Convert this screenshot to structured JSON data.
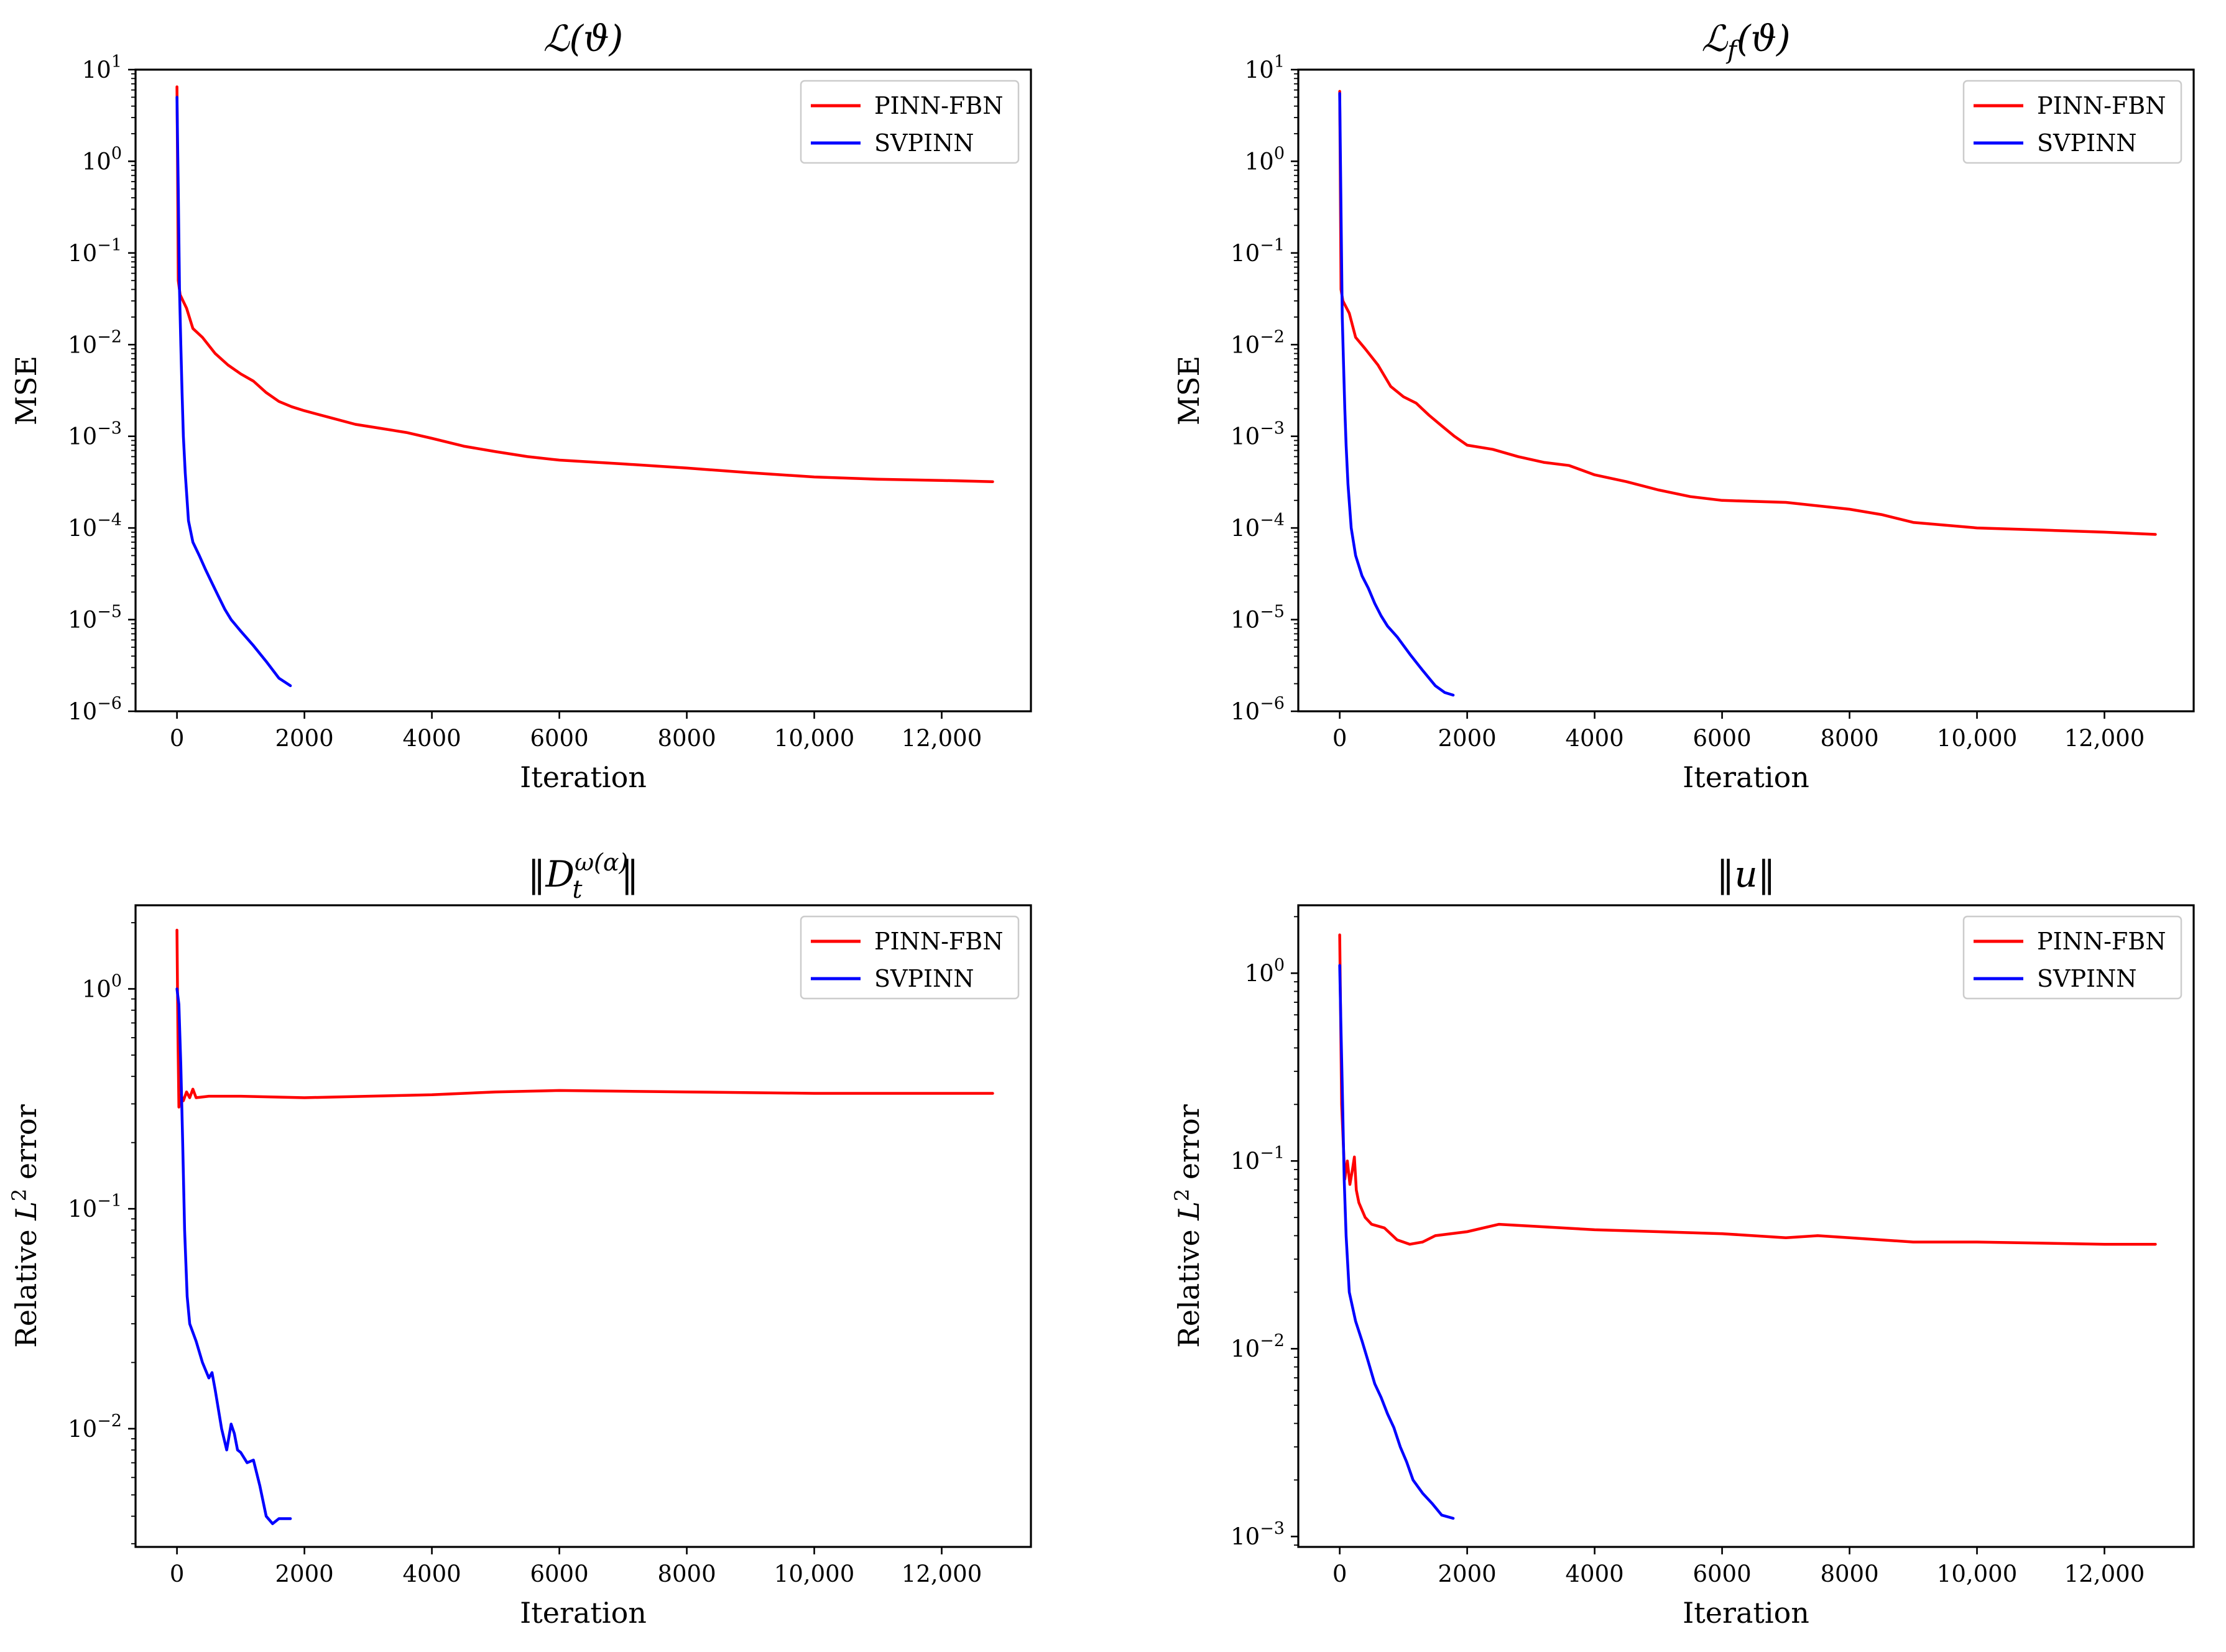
{
  "chart_data": [
    {
      "type": "line",
      "title": "ℒ(ϑ)",
      "xlabel": "Iteration",
      "ylabel": "MSE",
      "yscale": "log",
      "xlim": [
        -650,
        13400
      ],
      "ylim": [
        1e-06,
        10
      ],
      "xticks": [
        0,
        2000,
        4000,
        6000,
        8000,
        10000,
        12000
      ],
      "xtick_labels": [
        "0",
        "2000",
        "4000",
        "6000",
        "8000",
        "10,000",
        "12,000"
      ],
      "yticks": [
        1e-06,
        1e-05,
        0.0001,
        0.001,
        0.01,
        0.1,
        1,
        10
      ],
      "ytick_labels": [
        "10⁻⁶",
        "10⁻⁵",
        "10⁻⁴",
        "10⁻³",
        "10⁻²",
        "10⁻¹",
        "10⁰",
        "10¹"
      ],
      "legend": "top-right",
      "series": [
        {
          "name": "PINN-FBN",
          "color": "#ff0000",
          "points": [
            [
              0,
              6.5
            ],
            [
              10,
              0.8
            ],
            [
              20,
              0.05
            ],
            [
              50,
              0.035
            ],
            [
              150,
              0.025
            ],
            [
              250,
              0.015
            ],
            [
              400,
              0.012
            ],
            [
              600,
              0.008
            ],
            [
              800,
              0.006
            ],
            [
              1000,
              0.0048
            ],
            [
              1200,
              0.004
            ],
            [
              1400,
              0.003
            ],
            [
              1600,
              0.0024
            ],
            [
              1800,
              0.0021
            ],
            [
              2000,
              0.0019
            ],
            [
              2400,
              0.0016
            ],
            [
              2800,
              0.00135
            ],
            [
              3200,
              0.00122
            ],
            [
              3600,
              0.0011
            ],
            [
              4000,
              0.00095
            ],
            [
              4500,
              0.00078
            ],
            [
              5000,
              0.00068
            ],
            [
              5500,
              0.0006
            ],
            [
              6000,
              0.00055
            ],
            [
              7000,
              0.0005
            ],
            [
              8000,
              0.00045
            ],
            [
              9000,
              0.0004
            ],
            [
              10000,
              0.00036
            ],
            [
              11000,
              0.00034
            ],
            [
              12000,
              0.00033
            ],
            [
              12800,
              0.00032
            ]
          ]
        },
        {
          "name": "SVPINN",
          "color": "#0000ff",
          "points": [
            [
              0,
              5.0
            ],
            [
              20,
              0.5
            ],
            [
              40,
              0.04
            ],
            [
              60,
              0.01
            ],
            [
              80,
              0.003
            ],
            [
              100,
              0.001
            ],
            [
              130,
              0.0004
            ],
            [
              180,
              0.00012
            ],
            [
              250,
              7e-05
            ],
            [
              350,
              5e-05
            ],
            [
              450,
              3.5e-05
            ],
            [
              550,
              2.5e-05
            ],
            [
              650,
              1.8e-05
            ],
            [
              750,
              1.3e-05
            ],
            [
              850,
              1e-05
            ],
            [
              1000,
              7.5e-06
            ],
            [
              1200,
              5.2e-06
            ],
            [
              1400,
              3.5e-06
            ],
            [
              1600,
              2.3e-06
            ],
            [
              1780,
              1.9e-06
            ]
          ]
        }
      ]
    },
    {
      "type": "line",
      "title": "ℒf(ϑ)",
      "xlabel": "Iteration",
      "ylabel": "MSE",
      "yscale": "log",
      "xlim": [
        -650,
        13400
      ],
      "ylim": [
        1e-06,
        10
      ],
      "xticks": [
        0,
        2000,
        4000,
        6000,
        8000,
        10000,
        12000
      ],
      "xtick_labels": [
        "0",
        "2000",
        "4000",
        "6000",
        "8000",
        "10,000",
        "12,000"
      ],
      "yticks": [
        1e-06,
        1e-05,
        0.0001,
        0.001,
        0.01,
        0.1,
        1,
        10
      ],
      "ytick_labels": [
        "10⁻⁶",
        "10⁻⁵",
        "10⁻⁴",
        "10⁻³",
        "10⁻²",
        "10⁻¹",
        "10⁰",
        "10¹"
      ],
      "legend": "top-right",
      "series": [
        {
          "name": "PINN-FBN",
          "color": "#ff0000",
          "points": [
            [
              0,
              5.8
            ],
            [
              10,
              0.6
            ],
            [
              20,
              0.04
            ],
            [
              50,
              0.03
            ],
            [
              150,
              0.022
            ],
            [
              250,
              0.012
            ],
            [
              400,
              0.009
            ],
            [
              600,
              0.006
            ],
            [
              800,
              0.0035
            ],
            [
              1000,
              0.0027
            ],
            [
              1200,
              0.0023
            ],
            [
              1400,
              0.0017
            ],
            [
              1600,
              0.0013
            ],
            [
              1800,
              0.001
            ],
            [
              2000,
              0.0008
            ],
            [
              2400,
              0.00072
            ],
            [
              2800,
              0.0006
            ],
            [
              3200,
              0.00052
            ],
            [
              3600,
              0.00048
            ],
            [
              4000,
              0.00038
            ],
            [
              4500,
              0.00032
            ],
            [
              5000,
              0.00026
            ],
            [
              5500,
              0.00022
            ],
            [
              6000,
              0.0002
            ],
            [
              7000,
              0.00019
            ],
            [
              8000,
              0.00016
            ],
            [
              8500,
              0.00014
            ],
            [
              9000,
              0.000115
            ],
            [
              10000,
              0.0001
            ],
            [
              11000,
              9.5e-05
            ],
            [
              12000,
              9e-05
            ],
            [
              12800,
              8.5e-05
            ]
          ]
        },
        {
          "name": "SVPINN",
          "color": "#0000ff",
          "points": [
            [
              0,
              5.5
            ],
            [
              20,
              0.3
            ],
            [
              40,
              0.02
            ],
            [
              60,
              0.006
            ],
            [
              80,
              0.002
            ],
            [
              100,
              0.0008
            ],
            [
              130,
              0.0003
            ],
            [
              180,
              0.0001
            ],
            [
              250,
              5e-05
            ],
            [
              350,
              3e-05
            ],
            [
              450,
              2.2e-05
            ],
            [
              550,
              1.5e-05
            ],
            [
              650,
              1.1e-05
            ],
            [
              750,
              8.5e-06
            ],
            [
              900,
              6.5e-06
            ],
            [
              1100,
              4.2e-06
            ],
            [
              1300,
              2.8e-06
            ],
            [
              1500,
              1.9e-06
            ],
            [
              1650,
              1.6e-06
            ],
            [
              1780,
              1.5e-06
            ]
          ]
        }
      ]
    },
    {
      "type": "line",
      "title": "‖Dₜ^ω(α)‖",
      "xlabel": "Iteration",
      "ylabel": "Relative L² error",
      "yscale": "log",
      "xlim": [
        -650,
        13400
      ],
      "ylim": [
        0.0029,
        2.4
      ],
      "xticks": [
        0,
        2000,
        4000,
        6000,
        8000,
        10000,
        12000
      ],
      "xtick_labels": [
        "0",
        "2000",
        "4000",
        "6000",
        "8000",
        "10,000",
        "12,000"
      ],
      "yticks": [
        0.01,
        0.1,
        1
      ],
      "ytick_labels": [
        "10⁻²",
        "10⁻¹",
        "10⁰"
      ],
      "legend": "top-right",
      "series": [
        {
          "name": "PINN-FBN",
          "color": "#ff0000",
          "points": [
            [
              0,
              1.85
            ],
            [
              15,
              0.6
            ],
            [
              30,
              0.29
            ],
            [
              60,
              0.33
            ],
            [
              100,
              0.31
            ],
            [
              150,
              0.34
            ],
            [
              200,
              0.32
            ],
            [
              250,
              0.35
            ],
            [
              300,
              0.32
            ],
            [
              500,
              0.325
            ],
            [
              1000,
              0.325
            ],
            [
              2000,
              0.32
            ],
            [
              3000,
              0.325
            ],
            [
              4000,
              0.33
            ],
            [
              5000,
              0.34
            ],
            [
              6000,
              0.345
            ],
            [
              8000,
              0.34
            ],
            [
              10000,
              0.335
            ],
            [
              12000,
              0.335
            ],
            [
              12800,
              0.335
            ]
          ]
        },
        {
          "name": "SVPINN",
          "color": "#0000ff",
          "points": [
            [
              0,
              1.0
            ],
            [
              30,
              0.85
            ],
            [
              60,
              0.45
            ],
            [
              90,
              0.2
            ],
            [
              120,
              0.08
            ],
            [
              160,
              0.04
            ],
            [
              200,
              0.03
            ],
            [
              300,
              0.025
            ],
            [
              400,
              0.02
            ],
            [
              500,
              0.017
            ],
            [
              550,
              0.018
            ],
            [
              600,
              0.015
            ],
            [
              700,
              0.01
            ],
            [
              780,
              0.008
            ],
            [
              850,
              0.0105
            ],
            [
              900,
              0.0095
            ],
            [
              950,
              0.008
            ],
            [
              1000,
              0.0078
            ],
            [
              1100,
              0.007
            ],
            [
              1200,
              0.0072
            ],
            [
              1300,
              0.0055
            ],
            [
              1400,
              0.004
            ],
            [
              1500,
              0.0037
            ],
            [
              1600,
              0.0039
            ],
            [
              1700,
              0.0039
            ],
            [
              1780,
              0.0039
            ]
          ]
        }
      ]
    },
    {
      "type": "line",
      "title": "‖u‖",
      "xlabel": "Iteration",
      "ylabel": "Relative L² error",
      "yscale": "log",
      "xlim": [
        -650,
        13400
      ],
      "ylim": [
        0.00088,
        2.3
      ],
      "xticks": [
        0,
        2000,
        4000,
        6000,
        8000,
        10000,
        12000
      ],
      "xtick_labels": [
        "0",
        "2000",
        "4000",
        "6000",
        "8000",
        "10,000",
        "12,000"
      ],
      "yticks": [
        0.001,
        0.01,
        0.1,
        1
      ],
      "ytick_labels": [
        "10⁻³",
        "10⁻²",
        "10⁻¹",
        "10⁰"
      ],
      "legend": "top-right",
      "series": [
        {
          "name": "PINN-FBN",
          "color": "#ff0000",
          "points": [
            [
              0,
              1.6
            ],
            [
              30,
              0.2
            ],
            [
              80,
              0.08
            ],
            [
              120,
              0.1
            ],
            [
              160,
              0.075
            ],
            [
              200,
              0.09
            ],
            [
              230,
              0.105
            ],
            [
              260,
              0.07
            ],
            [
              300,
              0.06
            ],
            [
              400,
              0.05
            ],
            [
              500,
              0.046
            ],
            [
              700,
              0.044
            ],
            [
              900,
              0.038
            ],
            [
              1100,
              0.036
            ],
            [
              1300,
              0.037
            ],
            [
              1500,
              0.04
            ],
            [
              2000,
              0.042
            ],
            [
              2500,
              0.046
            ],
            [
              3000,
              0.045
            ],
            [
              4000,
              0.043
            ],
            [
              5000,
              0.042
            ],
            [
              6000,
              0.041
            ],
            [
              7000,
              0.039
            ],
            [
              7500,
              0.04
            ],
            [
              8000,
              0.039
            ],
            [
              9000,
              0.037
            ],
            [
              10000,
              0.037
            ],
            [
              11000,
              0.0365
            ],
            [
              12000,
              0.036
            ],
            [
              12800,
              0.036
            ]
          ]
        },
        {
          "name": "SVPINN",
          "color": "#0000ff",
          "points": [
            [
              0,
              1.1
            ],
            [
              20,
              0.5
            ],
            [
              40,
              0.25
            ],
            [
              70,
              0.08
            ],
            [
              100,
              0.04
            ],
            [
              150,
              0.02
            ],
            [
              250,
              0.014
            ],
            [
              350,
              0.011
            ],
            [
              450,
              0.0085
            ],
            [
              550,
              0.0065
            ],
            [
              650,
              0.0055
            ],
            [
              750,
              0.0045
            ],
            [
              850,
              0.0038
            ],
            [
              950,
              0.003
            ],
            [
              1050,
              0.0025
            ],
            [
              1150,
              0.002
            ],
            [
              1300,
              0.0017
            ],
            [
              1450,
              0.0015
            ],
            [
              1600,
              0.0013
            ],
            [
              1780,
              0.00125
            ]
          ]
        }
      ]
    }
  ]
}
